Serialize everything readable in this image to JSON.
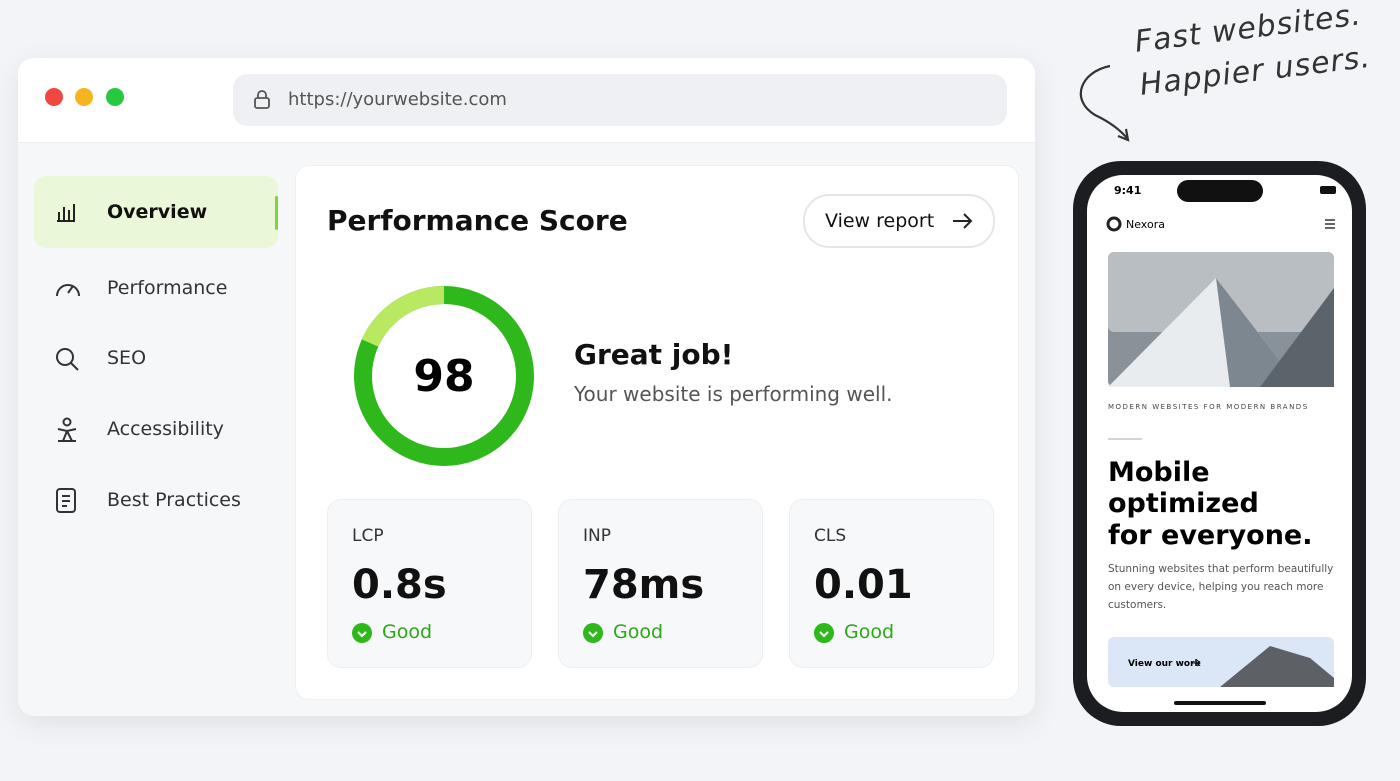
{
  "tagline": {
    "line1": "Fast websites.",
    "line2": "Happier users."
  },
  "browser": {
    "url": "https://yourwebsite.com"
  },
  "sidebar": {
    "items": [
      "Overview",
      "Performance",
      "SEO",
      "Accessibility",
      "Best Practices"
    ]
  },
  "panel": {
    "title": "Performance Score",
    "button": "View report",
    "score": 98,
    "headline": "Great job!",
    "message": "Your website is performing well.",
    "metrics": [
      {
        "label": "LCP",
        "value": "0.8s",
        "status": "Good"
      },
      {
        "label": "INP",
        "value": "78ms",
        "status": "Good"
      },
      {
        "label": "CLS",
        "value": "0.01",
        "status": "Good"
      }
    ]
  },
  "phone": {
    "time": "9:41",
    "brand": "Nexora",
    "eyebrow": "MODERN WEBSITES FOR MODERN BRANDS",
    "heading": [
      "Mobile",
      "optimized",
      "for everyone."
    ],
    "body": "Stunning websites that perform beautifully on every device, helping you reach more customers.",
    "cta": "View our work"
  }
}
